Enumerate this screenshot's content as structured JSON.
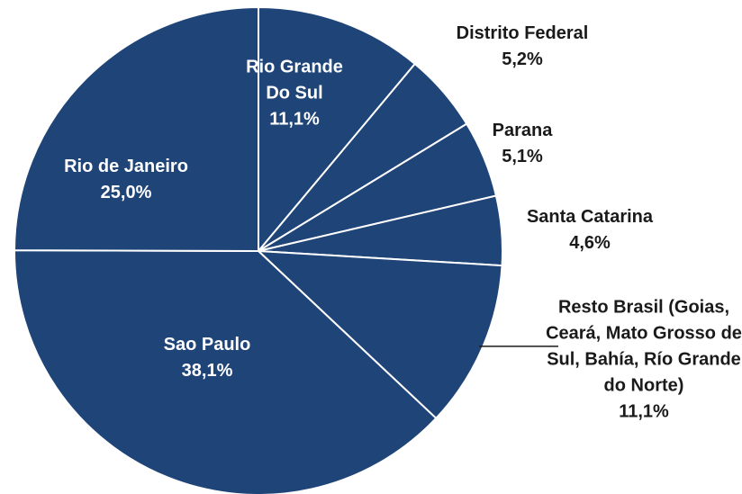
{
  "chart_data": {
    "type": "pie",
    "categories": [
      "Rio Grande Do Sul",
      "Distrito Federal",
      "Parana",
      "Santa Catarina",
      "Resto Brasil (Goias, Ceará, Mato Grosso de Sul, Bahía, Río Grande do Norte)",
      "Sao Paulo",
      "Rio de Janeiro"
    ],
    "values": [
      11.1,
      5.2,
      5.1,
      4.6,
      11.1,
      38.1,
      25.0
    ],
    "value_labels": [
      "11,1%",
      "5,2%",
      "5,1%",
      "4,6%",
      "11,1%",
      "38,1%",
      "25,0%"
    ],
    "color": "#1f4478"
  }
}
